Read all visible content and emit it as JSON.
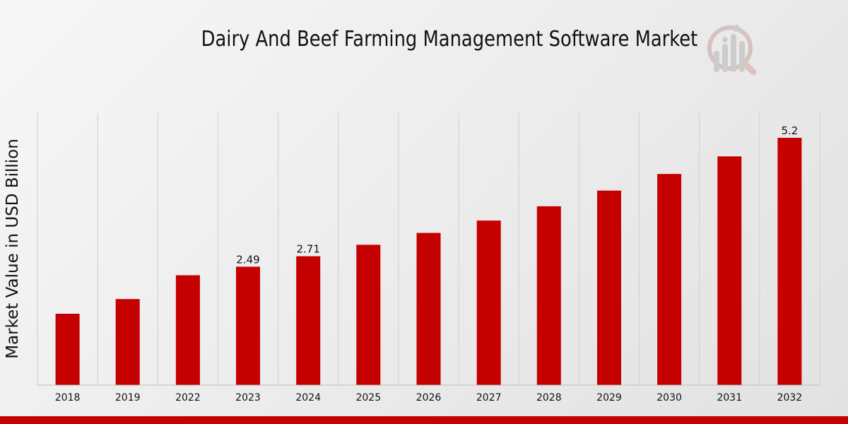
{
  "chart_data": {
    "type": "bar",
    "title": "Dairy And Beef Farming Management Software Market",
    "xlabel": "",
    "ylabel": "Market Value in USD Billion",
    "categories": [
      "2018",
      "2019",
      "2022",
      "2023",
      "2024",
      "2025",
      "2026",
      "2027",
      "2028",
      "2029",
      "2030",
      "2031",
      "2032"
    ],
    "values": [
      1.5,
      1.81,
      2.31,
      2.49,
      2.71,
      2.95,
      3.2,
      3.46,
      3.76,
      4.09,
      4.44,
      4.81,
      5.2
    ],
    "data_labels": {
      "3": "2.49",
      "4": "2.71",
      "12": "5.2"
    },
    "ylim": [
      0,
      5.2
    ],
    "grid": "vertical",
    "bar_color": "#c40000",
    "grid_color": "#cfcfcf"
  }
}
